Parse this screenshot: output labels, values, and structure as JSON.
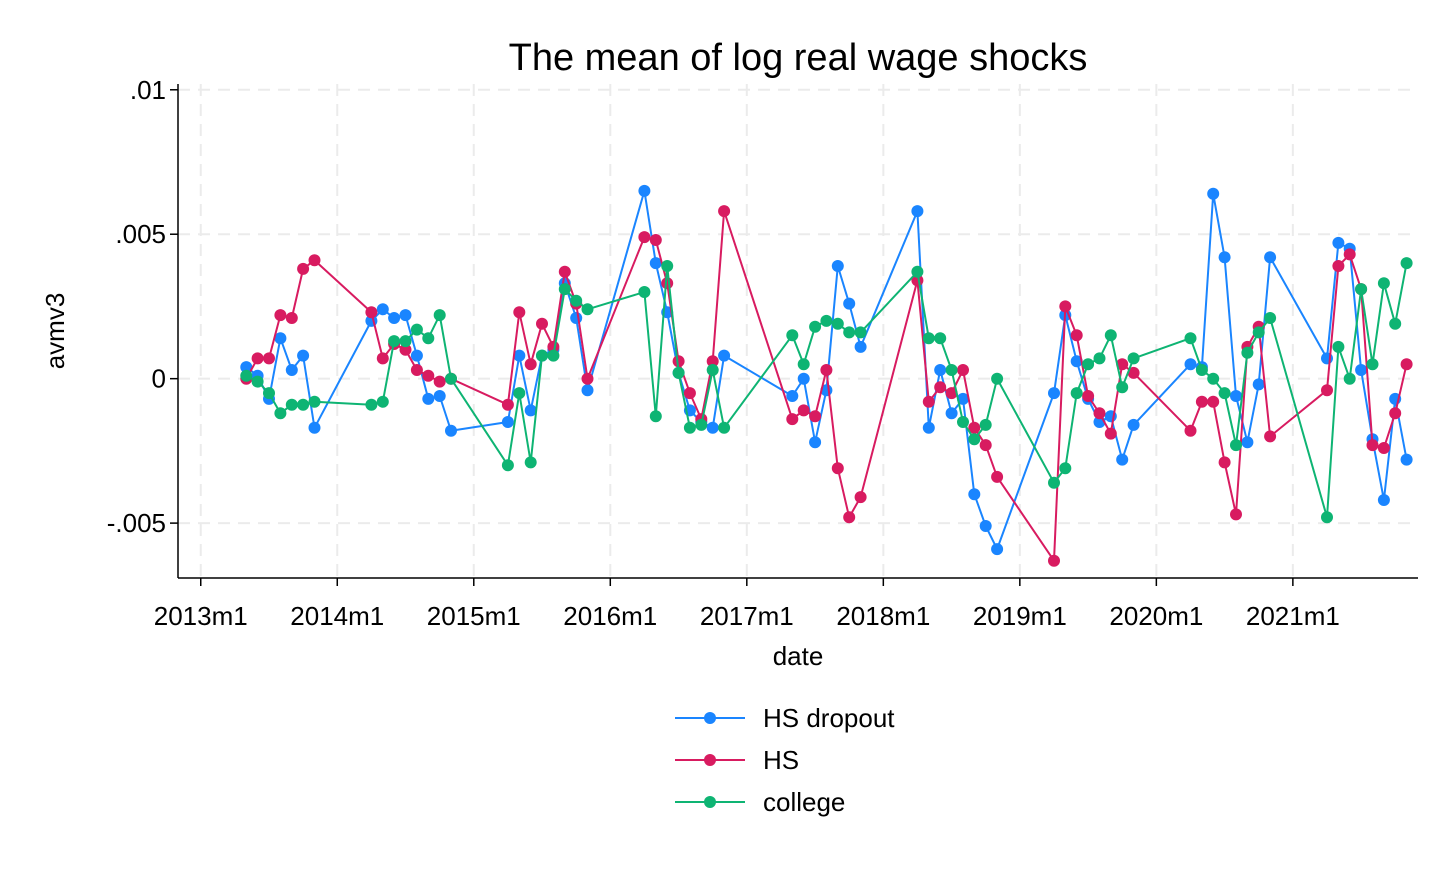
{
  "chart_data": {
    "type": "line",
    "title": "The mean of log real wage shocks",
    "xlabel": "date",
    "ylabel": "avmv3",
    "xlim": [
      "2012-11",
      "2021-12"
    ],
    "ylim": [
      -0.0069,
      0.0102
    ],
    "x_ticks": [
      {
        "label": "2013m1",
        "value": "2013-01"
      },
      {
        "label": "2014m1",
        "value": "2014-01"
      },
      {
        "label": "2015m1",
        "value": "2015-01"
      },
      {
        "label": "2016m1",
        "value": "2016-01"
      },
      {
        "label": "2017m1",
        "value": "2017-01"
      },
      {
        "label": "2018m1",
        "value": "2018-01"
      },
      {
        "label": "2019m1",
        "value": "2019-01"
      },
      {
        "label": "2020m1",
        "value": "2020-01"
      },
      {
        "label": "2021m1",
        "value": "2021-01"
      }
    ],
    "y_ticks": [
      {
        "label": ".01",
        "value": 0.01
      },
      {
        "label": ".005",
        "value": 0.005
      },
      {
        "label": "0",
        "value": 0
      },
      {
        "label": "-.005",
        "value": -0.005
      }
    ],
    "grid": true,
    "legend_position": "bottom",
    "series": [
      {
        "name": "HS dropout",
        "color": "#1a85ff",
        "points": [
          [
            "2013-05",
            0.0004
          ],
          [
            "2013-06",
            0.0001
          ],
          [
            "2013-07",
            -0.0007
          ],
          [
            "2013-08",
            0.0014
          ],
          [
            "2013-09",
            0.0003
          ],
          [
            "2013-10",
            0.0008
          ],
          [
            "2013-11",
            -0.0017
          ],
          [
            "2014-04",
            0.002
          ],
          [
            "2014-05",
            0.0024
          ],
          [
            "2014-06",
            0.0021
          ],
          [
            "2014-07",
            0.0022
          ],
          [
            "2014-08",
            0.0008
          ],
          [
            "2014-09",
            -0.0007
          ],
          [
            "2014-10",
            -0.0006
          ],
          [
            "2014-11",
            -0.0018
          ],
          [
            "2015-04",
            -0.0015
          ],
          [
            "2015-05",
            0.0008
          ],
          [
            "2015-06",
            -0.0011
          ],
          [
            "2015-07",
            0.0008
          ],
          [
            "2015-08",
            0.001
          ],
          [
            "2015-09",
            0.0033
          ],
          [
            "2015-10",
            0.0021
          ],
          [
            "2015-11",
            -0.0004
          ],
          [
            "2016-04",
            0.0065
          ],
          [
            "2016-05",
            0.004
          ],
          [
            "2016-06",
            0.0023
          ],
          [
            "2016-07",
            0.0002
          ],
          [
            "2016-08",
            -0.0011
          ],
          [
            "2016-09",
            -0.0015
          ],
          [
            "2016-10",
            -0.0017
          ],
          [
            "2016-11",
            0.0008
          ],
          [
            "2017-05",
            -0.0006
          ],
          [
            "2017-06",
            0.0
          ],
          [
            "2017-07",
            -0.0022
          ],
          [
            "2017-08",
            -0.0004
          ],
          [
            "2017-09",
            0.0039
          ],
          [
            "2017-10",
            0.0026
          ],
          [
            "2017-11",
            0.0011
          ],
          [
            "2018-04",
            0.0058
          ],
          [
            "2018-05",
            -0.0017
          ],
          [
            "2018-06",
            0.0003
          ],
          [
            "2018-07",
            -0.0012
          ],
          [
            "2018-08",
            -0.0007
          ],
          [
            "2018-09",
            -0.004
          ],
          [
            "2018-10",
            -0.0051
          ],
          [
            "2018-11",
            -0.0059
          ],
          [
            "2019-04",
            -0.0005
          ],
          [
            "2019-05",
            0.0022
          ],
          [
            "2019-06",
            0.0006
          ],
          [
            "2019-07",
            -0.0007
          ],
          [
            "2019-08",
            -0.0015
          ],
          [
            "2019-09",
            -0.0013
          ],
          [
            "2019-10",
            -0.0028
          ],
          [
            "2019-11",
            -0.0016
          ],
          [
            "2020-04",
            0.0005
          ],
          [
            "2020-05",
            0.0004
          ],
          [
            "2020-06",
            0.0064
          ],
          [
            "2020-07",
            0.0042
          ],
          [
            "2020-08",
            -0.0006
          ],
          [
            "2020-09",
            -0.0022
          ],
          [
            "2020-10",
            -0.0002
          ],
          [
            "2020-11",
            0.0042
          ],
          [
            "2021-04",
            0.0007
          ],
          [
            "2021-05",
            0.0047
          ],
          [
            "2021-06",
            0.0045
          ],
          [
            "2021-07",
            0.0003
          ],
          [
            "2021-08",
            -0.0021
          ],
          [
            "2021-09",
            -0.0042
          ],
          [
            "2021-10",
            -0.0007
          ],
          [
            "2021-11",
            -0.0028
          ]
        ]
      },
      {
        "name": "HS",
        "color": "#d81b60",
        "points": [
          [
            "2013-05",
            0.0
          ],
          [
            "2013-06",
            0.0007
          ],
          [
            "2013-07",
            0.0007
          ],
          [
            "2013-08",
            0.0022
          ],
          [
            "2013-09",
            0.0021
          ],
          [
            "2013-10",
            0.0038
          ],
          [
            "2013-11",
            0.0041
          ],
          [
            "2014-04",
            0.0023
          ],
          [
            "2014-05",
            0.0007
          ],
          [
            "2014-06",
            0.0012
          ],
          [
            "2014-07",
            0.001
          ],
          [
            "2014-08",
            0.0003
          ],
          [
            "2014-09",
            0.0001
          ],
          [
            "2014-10",
            -0.0001
          ],
          [
            "2014-11",
            0.0
          ],
          [
            "2015-04",
            -0.0009
          ],
          [
            "2015-05",
            0.0023
          ],
          [
            "2015-06",
            0.0005
          ],
          [
            "2015-07",
            0.0019
          ],
          [
            "2015-08",
            0.0011
          ],
          [
            "2015-09",
            0.0037
          ],
          [
            "2015-10",
            0.0026
          ],
          [
            "2015-11",
            0.0
          ],
          [
            "2016-04",
            0.0049
          ],
          [
            "2016-05",
            0.0048
          ],
          [
            "2016-06",
            0.0033
          ],
          [
            "2016-07",
            0.0006
          ],
          [
            "2016-08",
            -0.0005
          ],
          [
            "2016-09",
            -0.0014
          ],
          [
            "2016-10",
            0.0006
          ],
          [
            "2016-11",
            0.0058
          ],
          [
            "2017-05",
            -0.0014
          ],
          [
            "2017-06",
            -0.0011
          ],
          [
            "2017-07",
            -0.0013
          ],
          [
            "2017-08",
            0.0003
          ],
          [
            "2017-09",
            -0.0031
          ],
          [
            "2017-10",
            -0.0048
          ],
          [
            "2017-11",
            -0.0041
          ],
          [
            "2018-04",
            0.0034
          ],
          [
            "2018-05",
            -0.0008
          ],
          [
            "2018-06",
            -0.0003
          ],
          [
            "2018-07",
            -0.0005
          ],
          [
            "2018-08",
            0.0003
          ],
          [
            "2018-09",
            -0.0017
          ],
          [
            "2018-10",
            -0.0023
          ],
          [
            "2018-11",
            -0.0034
          ],
          [
            "2019-04",
            -0.0063
          ],
          [
            "2019-05",
            0.0025
          ],
          [
            "2019-06",
            0.0015
          ],
          [
            "2019-07",
            -0.0006
          ],
          [
            "2019-08",
            -0.0012
          ],
          [
            "2019-09",
            -0.0019
          ],
          [
            "2019-10",
            0.0005
          ],
          [
            "2019-11",
            0.0002
          ],
          [
            "2020-04",
            -0.0018
          ],
          [
            "2020-05",
            -0.0008
          ],
          [
            "2020-06",
            -0.0008
          ],
          [
            "2020-07",
            -0.0029
          ],
          [
            "2020-08",
            -0.0047
          ],
          [
            "2020-09",
            0.0011
          ],
          [
            "2020-10",
            0.0018
          ],
          [
            "2020-11",
            -0.002
          ],
          [
            "2021-04",
            -0.0004
          ],
          [
            "2021-05",
            0.0039
          ],
          [
            "2021-06",
            0.0043
          ],
          [
            "2021-07",
            0.0031
          ],
          [
            "2021-08",
            -0.0023
          ],
          [
            "2021-09",
            -0.0024
          ],
          [
            "2021-10",
            -0.0012
          ],
          [
            "2021-11",
            0.0005
          ]
        ]
      },
      {
        "name": "college",
        "color": "#0eb473",
        "points": [
          [
            "2013-05",
            0.0001
          ],
          [
            "2013-06",
            -0.0001
          ],
          [
            "2013-07",
            -0.0005
          ],
          [
            "2013-08",
            -0.0012
          ],
          [
            "2013-09",
            -0.0009
          ],
          [
            "2013-10",
            -0.0009
          ],
          [
            "2013-11",
            -0.0008
          ],
          [
            "2014-04",
            -0.0009
          ],
          [
            "2014-05",
            -0.0008
          ],
          [
            "2014-06",
            0.0013
          ],
          [
            "2014-07",
            0.0013
          ],
          [
            "2014-08",
            0.0017
          ],
          [
            "2014-09",
            0.0014
          ],
          [
            "2014-10",
            0.0022
          ],
          [
            "2014-11",
            0.0
          ],
          [
            "2015-04",
            -0.003
          ],
          [
            "2015-05",
            -0.0005
          ],
          [
            "2015-06",
            -0.0029
          ],
          [
            "2015-07",
            0.0008
          ],
          [
            "2015-08",
            0.0008
          ],
          [
            "2015-09",
            0.0031
          ],
          [
            "2015-10",
            0.0027
          ],
          [
            "2015-11",
            0.0024
          ],
          [
            "2016-04",
            0.003
          ],
          [
            "2016-05",
            -0.0013
          ],
          [
            "2016-06",
            0.0039
          ],
          [
            "2016-07",
            0.0002
          ],
          [
            "2016-08",
            -0.0017
          ],
          [
            "2016-09",
            -0.0016
          ],
          [
            "2016-10",
            0.0003
          ],
          [
            "2016-11",
            -0.0017
          ],
          [
            "2017-05",
            0.0015
          ],
          [
            "2017-06",
            0.0005
          ],
          [
            "2017-07",
            0.0018
          ],
          [
            "2017-08",
            0.002
          ],
          [
            "2017-09",
            0.0019
          ],
          [
            "2017-10",
            0.0016
          ],
          [
            "2017-11",
            0.0016
          ],
          [
            "2018-04",
            0.0037
          ],
          [
            "2018-05",
            0.0014
          ],
          [
            "2018-06",
            0.0014
          ],
          [
            "2018-07",
            0.0003
          ],
          [
            "2018-08",
            -0.0015
          ],
          [
            "2018-09",
            -0.0021
          ],
          [
            "2018-10",
            -0.0016
          ],
          [
            "2018-11",
            0.0
          ],
          [
            "2019-04",
            -0.0036
          ],
          [
            "2019-05",
            -0.0031
          ],
          [
            "2019-06",
            -0.0005
          ],
          [
            "2019-07",
            0.0005
          ],
          [
            "2019-08",
            0.0007
          ],
          [
            "2019-09",
            0.0015
          ],
          [
            "2019-10",
            -0.0003
          ],
          [
            "2019-11",
            0.0007
          ],
          [
            "2020-04",
            0.0014
          ],
          [
            "2020-05",
            0.0003
          ],
          [
            "2020-06",
            0.0
          ],
          [
            "2020-07",
            -0.0005
          ],
          [
            "2020-08",
            -0.0023
          ],
          [
            "2020-09",
            0.0009
          ],
          [
            "2020-10",
            0.0016
          ],
          [
            "2020-11",
            0.0021
          ],
          [
            "2021-04",
            -0.0048
          ],
          [
            "2021-05",
            0.0011
          ],
          [
            "2021-06",
            0.0
          ],
          [
            "2021-07",
            0.0031
          ],
          [
            "2021-08",
            0.0005
          ],
          [
            "2021-09",
            0.0033
          ],
          [
            "2021-10",
            0.0019
          ],
          [
            "2021-11",
            0.004
          ]
        ]
      }
    ]
  }
}
